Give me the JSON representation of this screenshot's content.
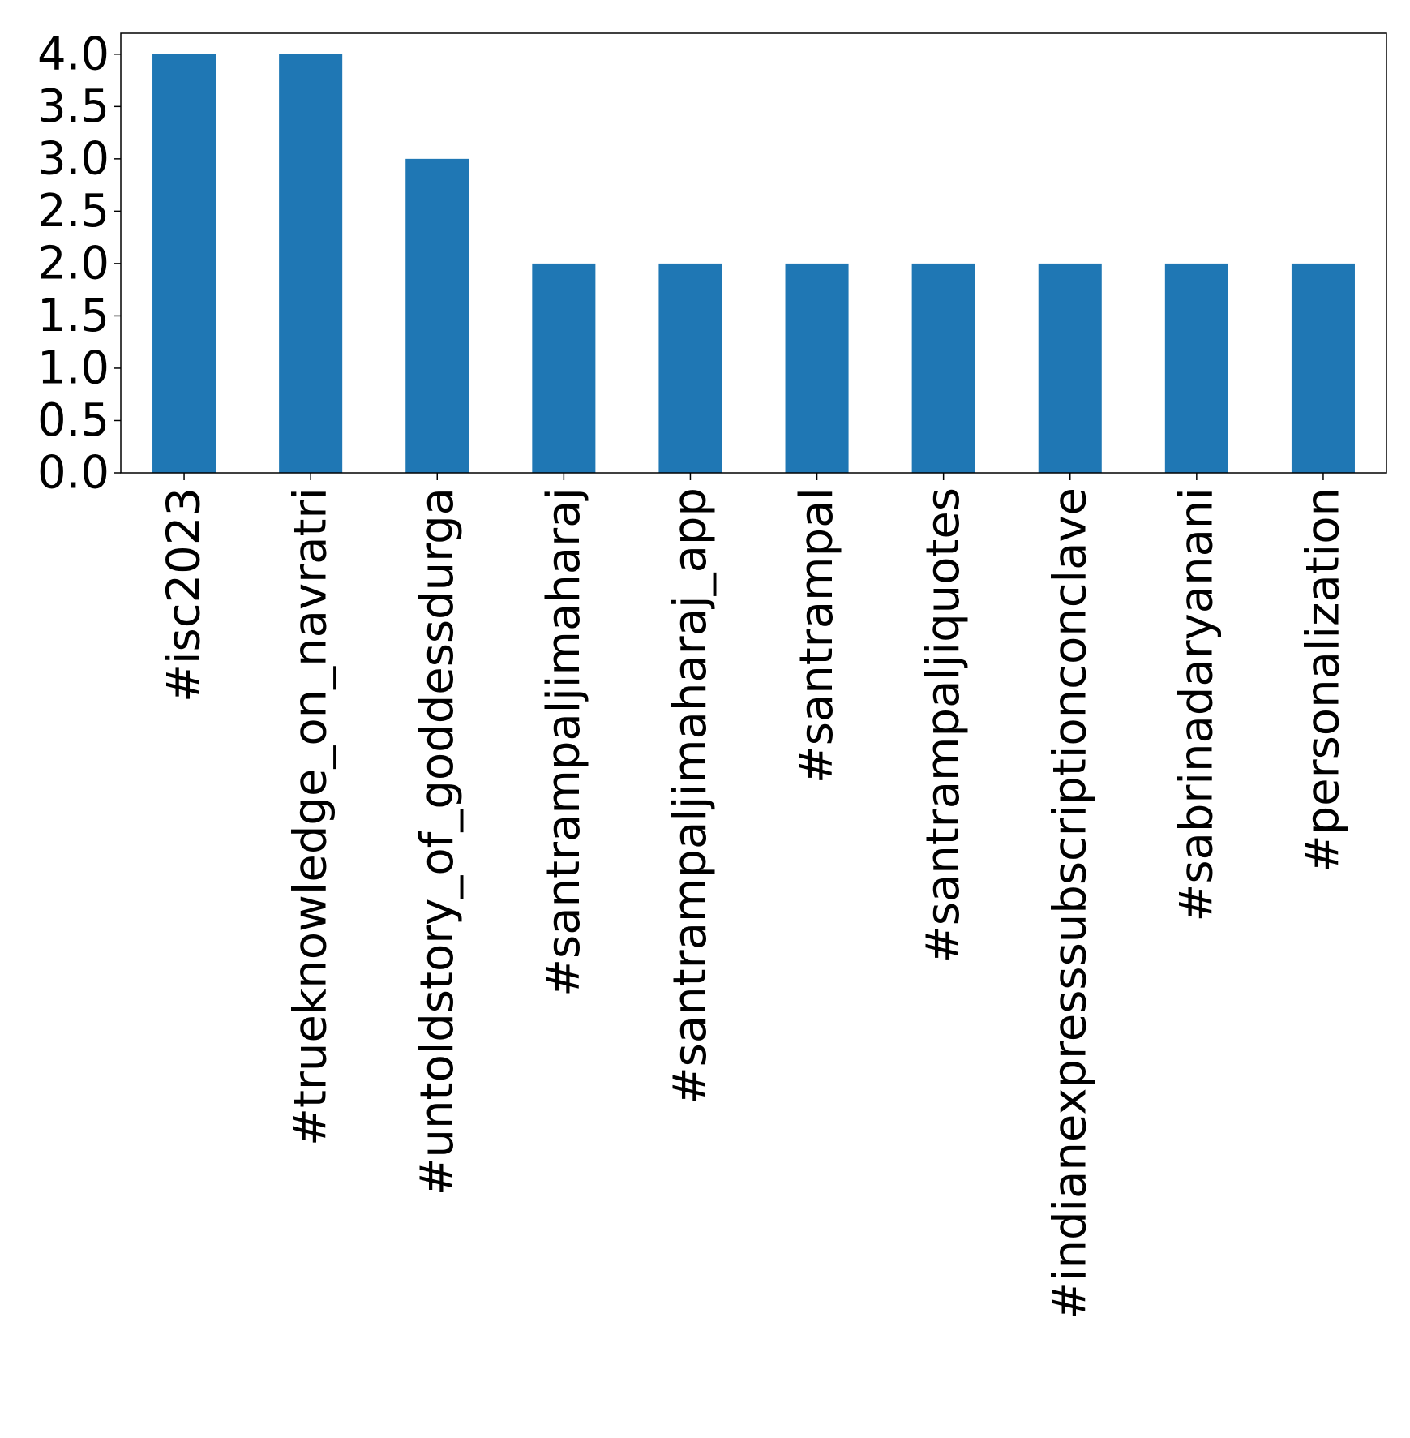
{
  "chart_data": {
    "type": "bar",
    "categories": [
      "#isc2023",
      "#trueknowledge_on_navratri",
      "#untoldstory_of_goddessdurga",
      "#santrampaljimaharaj",
      "#santrampaljimaharaj_app",
      "#santrampal",
      "#santrampaljiquotes",
      "#indianexpresssubscriptionconclave",
      "#sabrinadaryanani",
      "#personalization"
    ],
    "values": [
      4,
      4,
      3,
      2,
      2,
      2,
      2,
      2,
      2,
      2
    ],
    "title": "",
    "xlabel": "",
    "ylabel": "",
    "ylim": [
      0,
      4.2
    ],
    "yticks": [
      "0.0",
      "0.5",
      "1.0",
      "1.5",
      "2.0",
      "2.5",
      "3.0",
      "3.5",
      "4.0"
    ],
    "grid": false,
    "legend": "none",
    "bar_color": "#1f77b4"
  }
}
